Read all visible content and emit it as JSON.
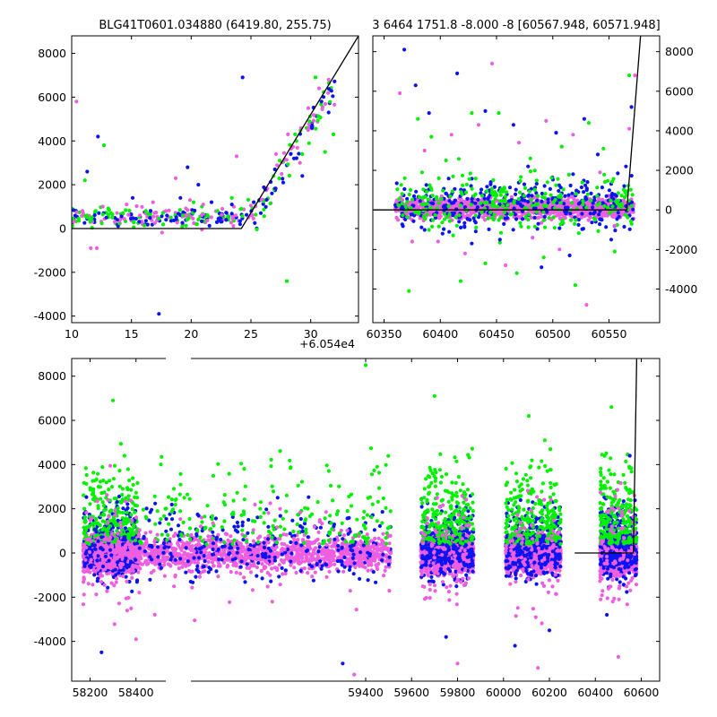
{
  "colors": {
    "blue": "#0a14f0",
    "green": "#00f000",
    "pink": "#ee5ee0",
    "line": "#000000"
  },
  "chart_data": [
    {
      "type": "scatter",
      "title": "BLG41T0601.034880 (6419.80, 255.75)",
      "xlim": [
        10,
        34
      ],
      "ylim": [
        -4300,
        8800
      ],
      "xticks": [
        10,
        15,
        20,
        25,
        30
      ],
      "yticks": [
        -4000,
        -2000,
        0,
        2000,
        4000,
        6000,
        8000
      ],
      "x_offset_label": "+6.054e4",
      "series": [
        {
          "color": "green",
          "values": [
            [
              10.6,
              350
            ],
            [
              11.1,
              2200
            ],
            [
              11.3,
              500
            ],
            [
              12.0,
              800
            ],
            [
              12.7,
              3800
            ],
            [
              13.4,
              500
            ],
            [
              14.3,
              700
            ],
            [
              15.2,
              300
            ],
            [
              16.2,
              800
            ],
            [
              17.3,
              450
            ],
            [
              18.3,
              500
            ],
            [
              19.3,
              600
            ],
            [
              20.2,
              1200
            ],
            [
              20.9,
              1000
            ],
            [
              22.2,
              800
            ],
            [
              23.4,
              1400
            ],
            [
              24.2,
              900
            ],
            [
              26.9,
              2400
            ],
            [
              27.4,
              3100
            ],
            [
              28.0,
              -2400
            ],
            [
              28.7,
              4300
            ],
            [
              29.3,
              3400
            ],
            [
              29.9,
              4900
            ],
            [
              30.4,
              6900
            ],
            [
              31.2,
              3500
            ],
            [
              31.9,
              4300
            ]
          ]
        },
        {
          "color": "blue",
          "values": [
            [
              11.3,
              2600
            ],
            [
              12.2,
              4200
            ],
            [
              12.9,
              500
            ],
            [
              13.8,
              400
            ],
            [
              15.1,
              1400
            ],
            [
              16.6,
              800
            ],
            [
              17.3,
              -3900
            ],
            [
              17.9,
              400
            ],
            [
              19.1,
              1400
            ],
            [
              19.7,
              2800
            ],
            [
              20.6,
              2000
            ],
            [
              21.7,
              1200
            ],
            [
              23.4,
              1100
            ],
            [
              24.3,
              6900
            ],
            [
              25.7,
              1300
            ],
            [
              27.0,
              2700
            ],
            [
              27.7,
              2100
            ],
            [
              28.6,
              3200
            ],
            [
              29.3,
              2400
            ],
            [
              30.1,
              4600
            ],
            [
              30.9,
              5800
            ],
            [
              31.5,
              5300
            ]
          ]
        },
        {
          "color": "pink",
          "values": [
            [
              10.4,
              5800
            ],
            [
              10.9,
              800
            ],
            [
              11.6,
              -900
            ],
            [
              12.1,
              -900
            ],
            [
              12.6,
              1000
            ],
            [
              13.6,
              300
            ],
            [
              14.6,
              1100
            ],
            [
              15.7,
              600
            ],
            [
              16.8,
              1200
            ],
            [
              17.9,
              800
            ],
            [
              18.7,
              2300
            ],
            [
              19.9,
              1300
            ],
            [
              21.0,
              1100
            ],
            [
              22.6,
              900
            ],
            [
              23.8,
              3300
            ],
            [
              24.8,
              500
            ],
            [
              25.9,
              1300
            ],
            [
              27.1,
              3400
            ],
            [
              28.1,
              4300
            ],
            [
              29.1,
              3000
            ],
            [
              29.8,
              5500
            ],
            [
              30.7,
              6400
            ],
            [
              31.5,
              6800
            ]
          ]
        }
      ],
      "model_line": {
        "x": [
          10,
          24.2,
          34
        ],
        "y": [
          0,
          0,
          8800
        ]
      }
    },
    {
      "type": "scatter",
      "title": "3 6464 1751.8 -8.000 -8 [60567.948, 60571.948]",
      "xlim": [
        60340,
        60595
      ],
      "ylim": [
        -5700,
        8800
      ],
      "xticks": [
        60350,
        60400,
        60450,
        60500,
        60550
      ],
      "yticks": [
        -4000,
        -2000,
        0,
        2000,
        4000,
        6000,
        8000
      ],
      "series": [
        {
          "color": "green",
          "values": [
            [
              60372,
              -4100
            ],
            [
              60380,
              4600
            ],
            [
              60392,
              3700
            ],
            [
              60405,
              2500
            ],
            [
              60418,
              -3600
            ],
            [
              60428,
              4900
            ],
            [
              60440,
              -2700
            ],
            [
              60452,
              4900
            ],
            [
              60468,
              -3200
            ],
            [
              60480,
              2600
            ],
            [
              60492,
              -2400
            ],
            [
              60508,
              3200
            ],
            [
              60520,
              -3800
            ],
            [
              60532,
              4400
            ],
            [
              60545,
              3100
            ],
            [
              60555,
              -2100
            ],
            [
              60568,
              6800
            ]
          ]
        },
        {
          "color": "blue",
          "values": [
            [
              60368,
              8100
            ],
            [
              60378,
              6300
            ],
            [
              60390,
              4900
            ],
            [
              60402,
              -1200
            ],
            [
              60415,
              6900
            ],
            [
              60428,
              -1700
            ],
            [
              60440,
              5000
            ],
            [
              60453,
              -1500
            ],
            [
              60465,
              4300
            ],
            [
              60478,
              2200
            ],
            [
              60490,
              -2900
            ],
            [
              60503,
              3900
            ],
            [
              60515,
              -2300
            ],
            [
              60528,
              4600
            ],
            [
              60540,
              2800
            ],
            [
              60552,
              -1500
            ],
            [
              60565,
              2200
            ],
            [
              60570,
              5200
            ]
          ]
        },
        {
          "color": "pink",
          "values": [
            [
              60364,
              5900
            ],
            [
              60375,
              -1600
            ],
            [
              60386,
              3000
            ],
            [
              60398,
              -1600
            ],
            [
              60410,
              3800
            ],
            [
              60422,
              -2200
            ],
            [
              60434,
              4300
            ],
            [
              60446,
              7400
            ],
            [
              60458,
              -2800
            ],
            [
              60470,
              3400
            ],
            [
              60482,
              -1400
            ],
            [
              60494,
              4500
            ],
            [
              60506,
              -2000
            ],
            [
              60518,
              3800
            ],
            [
              60530,
              -4800
            ],
            [
              60542,
              1900
            ],
            [
              60555,
              -800
            ],
            [
              60568,
              4100
            ],
            [
              60573,
              6800
            ]
          ]
        }
      ],
      "model_line": {
        "x": [
          60340,
          60565.8,
          60578
        ],
        "y": [
          0,
          0,
          8800
        ]
      }
    },
    {
      "type": "scatter",
      "xlim": [
        58120,
        60680
      ],
      "ylim": [
        -5800,
        8800
      ],
      "xticks": [
        58200,
        58400,
        59400,
        59600,
        59800,
        60000,
        60200,
        60400,
        60600
      ],
      "yticks": [
        -4000,
        -2000,
        0,
        2000,
        4000,
        6000,
        8000
      ],
      "seasons": [
        [
          58170,
          58410
        ],
        [
          58220,
          59510
        ],
        [
          59640,
          59870
        ],
        [
          60010,
          60250
        ],
        [
          60420,
          60580
        ]
      ],
      "series": [
        {
          "color": "green",
          "values": [
            [
              58300,
              6900
            ],
            [
              58350,
              4400
            ],
            [
              59400,
              8500
            ],
            [
              59450,
              3900
            ],
            [
              59700,
              7100
            ],
            [
              60110,
              6200
            ],
            [
              60180,
              5100
            ],
            [
              60470,
              6600
            ]
          ]
        },
        {
          "color": "blue",
          "values": [
            [
              58250,
              -4500
            ],
            [
              59300,
              -5000
            ],
            [
              59750,
              -3800
            ],
            [
              60050,
              -4200
            ],
            [
              60200,
              -3500
            ],
            [
              60450,
              -2800
            ],
            [
              60550,
              4400
            ]
          ]
        },
        {
          "color": "pink",
          "values": [
            [
              58400,
              -3900
            ],
            [
              59350,
              -5500
            ],
            [
              59800,
              -5000
            ],
            [
              60150,
              -5200
            ],
            [
              60500,
              -4700
            ],
            [
              60570,
              2600
            ]
          ]
        }
      ],
      "model_line": {
        "x": [
          60310,
          60565.8,
          60580
        ],
        "y": [
          0,
          0,
          8800
        ]
      }
    }
  ]
}
